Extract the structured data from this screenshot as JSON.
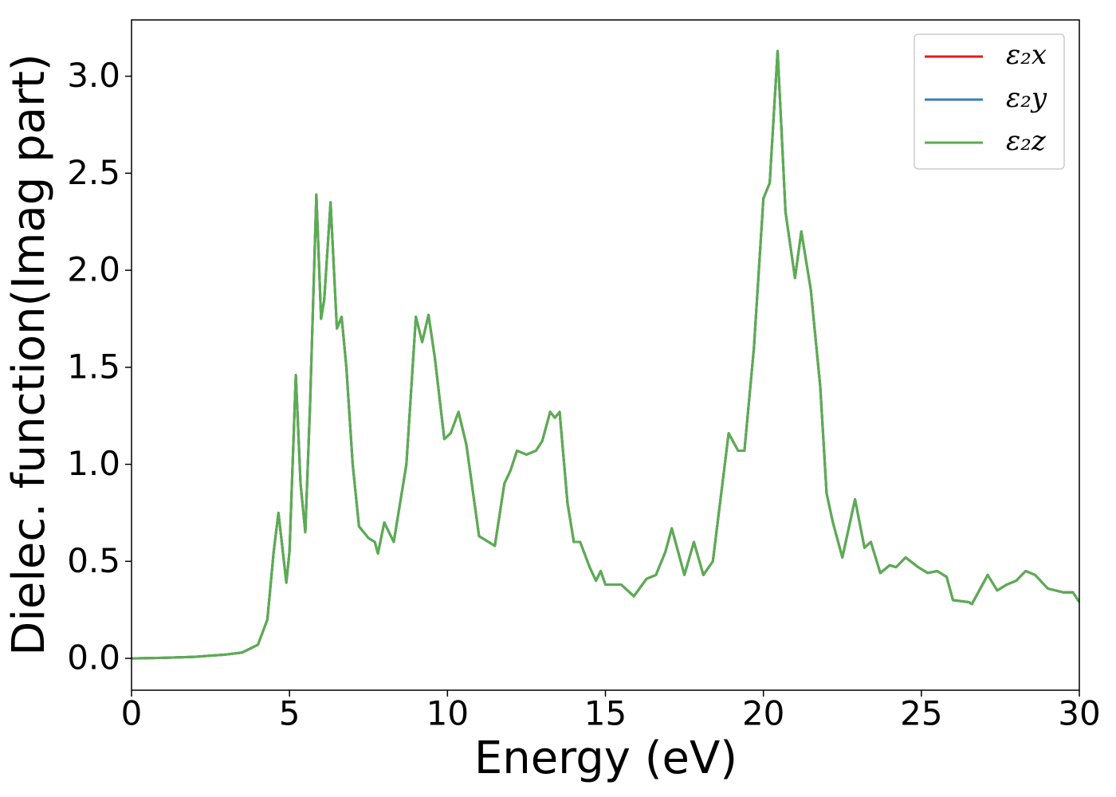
{
  "chart_data": {
    "type": "line",
    "xlabel": "Energy (eV)",
    "ylabel": "Dielec. function(Imag part)",
    "x": [
      0,
      1,
      2,
      3,
      3.5,
      4,
      4.3,
      4.5,
      4.65,
      4.9,
      5.0,
      5.2,
      5.35,
      5.5,
      5.65,
      5.85,
      6.0,
      6.1,
      6.3,
      6.5,
      6.65,
      6.8,
      7.0,
      7.2,
      7.5,
      7.7,
      7.8,
      8.0,
      8.3,
      8.7,
      9.0,
      9.2,
      9.4,
      9.6,
      9.9,
      10.1,
      10.35,
      10.6,
      11.0,
      11.2,
      11.5,
      11.8,
      12.0,
      12.2,
      12.5,
      12.8,
      13.0,
      13.25,
      13.4,
      13.55,
      13.8,
      14.0,
      14.2,
      14.5,
      14.7,
      14.85,
      15.0,
      15.5,
      15.9,
      16.3,
      16.6,
      16.9,
      17.1,
      17.5,
      17.8,
      18.1,
      18.4,
      18.9,
      19.2,
      19.4,
      19.7,
      20.0,
      20.2,
      20.45,
      20.7,
      21.0,
      21.2,
      21.5,
      21.8,
      22.0,
      22.2,
      22.5,
      22.9,
      23.2,
      23.4,
      23.7,
      24.0,
      24.2,
      24.5,
      24.9,
      25.2,
      25.5,
      25.8,
      26.0,
      26.5,
      26.6,
      27.1,
      27.4,
      27.7,
      28.0,
      28.3,
      28.6,
      29.0,
      29.5,
      29.8,
      30
    ],
    "series": [
      {
        "name": "ε₂x",
        "color": "#e41a1c",
        "values": [
          0,
          0.003,
          0.008,
          0.02,
          0.03,
          0.07,
          0.2,
          0.55,
          0.75,
          0.39,
          0.55,
          1.46,
          0.9,
          0.65,
          1.3,
          2.39,
          1.75,
          1.85,
          2.35,
          1.7,
          1.76,
          1.5,
          1.0,
          0.68,
          0.62,
          0.6,
          0.54,
          0.7,
          0.6,
          1.0,
          1.76,
          1.63,
          1.77,
          1.55,
          1.13,
          1.16,
          1.27,
          1.1,
          0.63,
          0.61,
          0.58,
          0.9,
          0.97,
          1.07,
          1.05,
          1.07,
          1.12,
          1.27,
          1.24,
          1.27,
          0.8,
          0.6,
          0.6,
          0.47,
          0.4,
          0.45,
          0.38,
          0.38,
          0.32,
          0.41,
          0.43,
          0.55,
          0.67,
          0.43,
          0.6,
          0.43,
          0.5,
          1.16,
          1.07,
          1.07,
          1.6,
          2.37,
          2.45,
          3.13,
          2.3,
          1.96,
          2.2,
          1.9,
          1.4,
          0.85,
          0.7,
          0.52,
          0.82,
          0.57,
          0.6,
          0.44,
          0.48,
          0.47,
          0.52,
          0.47,
          0.44,
          0.45,
          0.42,
          0.3,
          0.29,
          0.28,
          0.43,
          0.35,
          0.38,
          0.4,
          0.45,
          0.43,
          0.36,
          0.34,
          0.34,
          0.29
        ]
      },
      {
        "name": "ε₂y",
        "color": "#377eb8",
        "values": [
          0,
          0.003,
          0.008,
          0.02,
          0.03,
          0.07,
          0.2,
          0.55,
          0.75,
          0.39,
          0.55,
          1.46,
          0.9,
          0.65,
          1.3,
          2.39,
          1.75,
          1.85,
          2.35,
          1.7,
          1.76,
          1.5,
          1.0,
          0.68,
          0.62,
          0.6,
          0.54,
          0.7,
          0.6,
          1.0,
          1.76,
          1.63,
          1.77,
          1.55,
          1.13,
          1.16,
          1.27,
          1.1,
          0.63,
          0.61,
          0.58,
          0.9,
          0.97,
          1.07,
          1.05,
          1.07,
          1.12,
          1.27,
          1.24,
          1.27,
          0.8,
          0.6,
          0.6,
          0.47,
          0.4,
          0.45,
          0.38,
          0.38,
          0.32,
          0.41,
          0.43,
          0.55,
          0.67,
          0.43,
          0.6,
          0.43,
          0.5,
          1.16,
          1.07,
          1.07,
          1.6,
          2.37,
          2.45,
          3.13,
          2.3,
          1.96,
          2.2,
          1.9,
          1.4,
          0.85,
          0.7,
          0.52,
          0.82,
          0.57,
          0.6,
          0.44,
          0.48,
          0.47,
          0.52,
          0.47,
          0.44,
          0.45,
          0.42,
          0.3,
          0.29,
          0.28,
          0.43,
          0.35,
          0.38,
          0.4,
          0.45,
          0.43,
          0.36,
          0.34,
          0.34,
          0.29
        ]
      },
      {
        "name": "ε₂z",
        "color": "#5aad50",
        "values": [
          0,
          0.003,
          0.008,
          0.02,
          0.03,
          0.07,
          0.2,
          0.55,
          0.75,
          0.39,
          0.55,
          1.46,
          0.9,
          0.65,
          1.3,
          2.39,
          1.75,
          1.85,
          2.35,
          1.7,
          1.76,
          1.5,
          1.0,
          0.68,
          0.62,
          0.6,
          0.54,
          0.7,
          0.6,
          1.0,
          1.76,
          1.63,
          1.77,
          1.55,
          1.13,
          1.16,
          1.27,
          1.1,
          0.63,
          0.61,
          0.58,
          0.9,
          0.97,
          1.07,
          1.05,
          1.07,
          1.12,
          1.27,
          1.24,
          1.27,
          0.8,
          0.6,
          0.6,
          0.47,
          0.4,
          0.45,
          0.38,
          0.38,
          0.32,
          0.41,
          0.43,
          0.55,
          0.67,
          0.43,
          0.6,
          0.43,
          0.5,
          1.16,
          1.07,
          1.07,
          1.6,
          2.37,
          2.45,
          3.13,
          2.3,
          1.96,
          2.2,
          1.9,
          1.4,
          0.85,
          0.7,
          0.52,
          0.82,
          0.57,
          0.6,
          0.44,
          0.48,
          0.47,
          0.52,
          0.47,
          0.44,
          0.45,
          0.42,
          0.3,
          0.29,
          0.28,
          0.43,
          0.35,
          0.38,
          0.4,
          0.45,
          0.43,
          0.36,
          0.34,
          0.34,
          0.29
        ]
      }
    ],
    "xlim": [
      0,
      30
    ],
    "xticks": [
      0,
      5,
      10,
      15,
      20,
      25,
      30
    ],
    "ylim": [
      -0.164,
      3.29
    ],
    "yticks": [
      {
        "value": 0,
        "label": "0.0"
      },
      0.5,
      {
        "value": 1,
        "label": "1.0"
      },
      1.5,
      {
        "value": 2,
        "label": "2.0"
      },
      2.5,
      {
        "value": 3,
        "label": "3.0"
      }
    ],
    "grid": false,
    "legend": "upper right"
  }
}
